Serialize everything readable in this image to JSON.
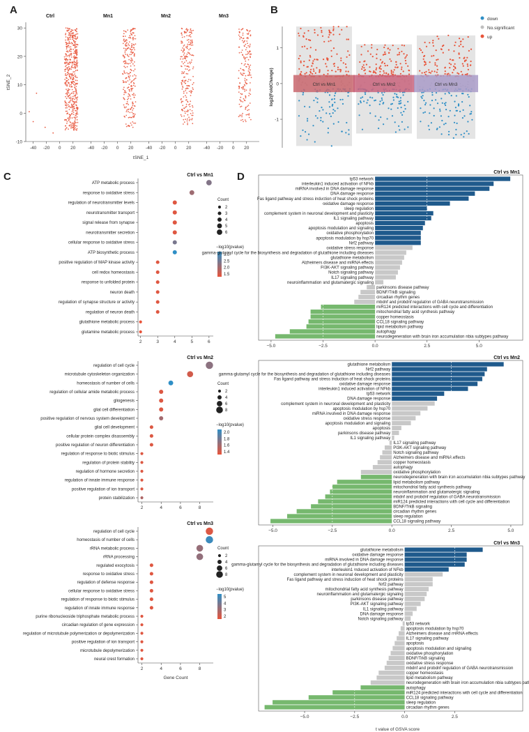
{
  "panel_labels": {
    "A": "A",
    "B": "B",
    "C": "C",
    "D": "D"
  },
  "colors": {
    "up": "#e8543a",
    "down": "#2f8fc6",
    "ns": "#bfbfbf",
    "navy": "#1f5a8c",
    "green": "#76b86e",
    "grey": "#c8c8c8",
    "ctrlmn1": "#c9666d",
    "ctrlmn2": "#c9647c",
    "ctrlmn3": "#a99bc8"
  },
  "chart_data": [
    {
      "id": "A",
      "type": "scatter",
      "title": "",
      "facets": [
        "Ctrl",
        "Mn1",
        "Mn2",
        "Mn3"
      ],
      "xlabel": "tSNE_1",
      "ylabel": "tSNE_2",
      "xticks": [
        -40,
        -20,
        0,
        20
      ],
      "yticks": [
        -10,
        0,
        10,
        20,
        30
      ],
      "xlim": [
        -48,
        36
      ],
      "ylim": [
        -10,
        32
      ]
    },
    {
      "id": "B",
      "type": "scatter",
      "ylabel": "log2(FoldChange)",
      "yticks": [
        -1,
        0,
        1
      ],
      "ylim": [
        -1.8,
        1.6
      ],
      "legend": [
        "down",
        "No.significant",
        "up"
      ],
      "groups": [
        "Ctrl vs Mn1",
        "Ctrl vs Mn2",
        "Ctrl vs Mn3"
      ],
      "ranges": [
        [
          -1.75,
          1.6
        ],
        [
          -1.4,
          1.1
        ],
        [
          -1.55,
          1.35
        ]
      ]
    },
    {
      "id": "C1",
      "type": "scatter",
      "title": "Ctrl  vs  Mn1",
      "xlabel": "",
      "xticks": [
        2,
        3,
        4,
        5,
        6
      ],
      "xlim": [
        1.85,
        6.25
      ],
      "size_legend_title": "Count",
      "size_legend": [
        "2",
        "3",
        "4",
        "5",
        "6"
      ],
      "color_legend_title": "−log10(pvalue)",
      "color_ticks": [
        "3.0",
        "2.5",
        "2.0",
        "1.5"
      ],
      "color_range": [
        1.2,
        3.2
      ],
      "terms": [
        "ATP metabolic process",
        "response to oxidative stress",
        "regulation of neurotransmitter levels",
        "neurotransmitter transport",
        "signal release from synapse",
        "neurotransmitter secretion",
        "cellular response to oxidative stress",
        "ATP biosynthetic process",
        "positive regulation of MAP kinase activity",
        "cell redox homeostasis",
        "response to unfolded protein",
        "neuron death",
        "regulation of synapse structure or activity",
        "regulation of neuron death",
        "glutathione metabolic process",
        "glutamine metabolic process"
      ],
      "counts": [
        6,
        5,
        4,
        4,
        4,
        4,
        4,
        4,
        3,
        3,
        3,
        3,
        3,
        3,
        2,
        2
      ],
      "pvals": [
        2.3,
        2.0,
        1.3,
        1.3,
        1.3,
        1.3,
        2.4,
        3.3,
        1.3,
        1.3,
        1.3,
        1.3,
        1.3,
        1.3,
        1.2,
        1.2
      ]
    },
    {
      "id": "C2",
      "type": "scatter",
      "title": "Ctrl  vs  Mn2",
      "xlabel": "",
      "xticks": [
        2,
        4,
        6,
        8
      ],
      "xlim": [
        1.6,
        9.4
      ],
      "size_legend_title": "Count",
      "size_legend": [
        "2",
        "4",
        "6",
        "8"
      ],
      "color_legend_title": "−log10(pvalue)",
      "color_ticks": [
        "2.0",
        "1.8",
        "1.6",
        "1.4"
      ],
      "color_range": [
        1.3,
        2.1
      ],
      "terms": [
        "regulation of cell cycle",
        "microtubule cytoskeleton organization",
        "homeostasis of number of cells",
        "regulation of cellular amide metabolic process",
        "gliogenesis",
        "glial cell differentiation",
        "positive regulation of nervous system development",
        "glial cell development",
        "cellular protein complex disassembly",
        "positive regulation of neuron differentiation",
        "regulation of response to biotic stimulus",
        "regulation of protein stability",
        "regulation of hormone secretion",
        "regulation of innate immune response",
        "positive regulation of ion transport",
        "protein stabilization"
      ],
      "counts": [
        9,
        7,
        5,
        4,
        4,
        4,
        4,
        3,
        3,
        3,
        2,
        2,
        2,
        2,
        2,
        2
      ],
      "pvals": [
        1.7,
        1.4,
        2.1,
        1.35,
        1.35,
        1.35,
        1.6,
        1.35,
        1.35,
        1.35,
        1.35,
        1.35,
        1.35,
        1.35,
        1.35,
        1.55
      ]
    },
    {
      "id": "C3",
      "type": "scatter",
      "title": "Ctrl  vs  Mn3",
      "xlabel": "Gene Count",
      "xticks": [
        2,
        4,
        6,
        8
      ],
      "xlim": [
        1.6,
        9.4
      ],
      "size_legend_title": "Count",
      "size_legend": [
        "2",
        "4",
        "6",
        "8"
      ],
      "color_legend_title": "−log10(pvalue)",
      "color_ticks": [
        "5",
        "4",
        "3",
        "2"
      ],
      "color_range": [
        1.5,
        5.8
      ],
      "terms": [
        "regulation of cell cycle",
        "homeostasis of number of cells",
        "rRNA metabolic process",
        "rRNA processing",
        "regulated exocytosis",
        "response to oxidative stress",
        "regulation of defense response",
        "cellular response to oxidative stress",
        "regulation of response to biotic stimulus",
        "regulation of innate immune response",
        "purine ribonucleoside triphosphate metabolic process",
        "circadian regulation of gene expression",
        "regulation of microtubule polymerization or depolymerization",
        "positive regulation of ion transport",
        "microtubule depolymerization",
        "neural crest formation"
      ],
      "counts": [
        9,
        9,
        8,
        8,
        3,
        3,
        3,
        3,
        3,
        3,
        2,
        2,
        2,
        2,
        2,
        2
      ],
      "pvals": [
        1.8,
        5.5,
        3.4,
        3.5,
        1.7,
        1.7,
        1.7,
        1.7,
        1.7,
        1.7,
        1.7,
        1.7,
        1.7,
        1.7,
        1.7,
        1.7
      ]
    },
    {
      "id": "D1",
      "type": "bar",
      "title": "Ctrl  vs  Mn1",
      "xlabel": "",
      "xticks": [
        -5,
        -2.5,
        0,
        2.5,
        5
      ],
      "xticklabels": [
        "−5.0",
        "−2.5",
        "0.0",
        "2.5",
        "5.0"
      ],
      "xlim": [
        -5.6,
        7.1
      ],
      "terms": [
        "tp53 network",
        "interleukin1 induced activation of NFkb",
        "miRNA involved in DNA damage response",
        "DNA damage response",
        "Fas ligand pathway and stress induction of heat shock proteins",
        "oxidative damage response",
        "sleep regulation",
        "complement system in neuronal development and plasticity",
        "IL1 signaling pathway",
        "apoptosis",
        "apoptosis modulation and signaling",
        "oxidative phosphorylation",
        "apoptosis modulation by hsp70",
        "Nrf2 pathway",
        "oxidative stress response",
        "gamma-glutamyl cycle for the biosynthesis and degradation of glutathione including diseases",
        "glutathione metabolism",
        "Alzheimers disease and miRNA effects",
        "PI3K-AKT signaling pathway",
        "Notch signaling pathway",
        "IL17 signaling pathway",
        "neuroinflammation and glutamatergic signaling",
        "parkinsons disease pathway",
        "BDNF/TrkB signaling",
        "circadian rhythm genes",
        "mbdnf and probdnf regulation of GABA neurotransmission",
        "miR124 predicted interactions with cell cycle and differentiation",
        "mitochondrial fatty acid synthesis pathway",
        "copper homeostasis",
        "CCL18 signaling pathway",
        "lipid metabolism pathway",
        "autophagy",
        "neurodegeneration with brain iron accumulation nbia subtypes pathway"
      ],
      "values": [
        6.5,
        5.7,
        5.5,
        4.8,
        4.5,
        3.6,
        2.5,
        2.8,
        2.7,
        2.4,
        2.3,
        2.2,
        2.2,
        2.2,
        1.8,
        1.5,
        1.4,
        1.3,
        1.2,
        1.1,
        1.0,
        0.4,
        -0.4,
        -0.7,
        -0.8,
        -1.0,
        -2.6,
        -3.1,
        -3.1,
        -3.2,
        -3.3,
        -4.1,
        -4.8
      ],
      "categories": [
        "up",
        "up",
        "up",
        "up",
        "up",
        "up",
        "up",
        "up",
        "up",
        "up",
        "up",
        "up",
        "up",
        "up",
        "ns",
        "ns",
        "ns",
        "ns",
        "ns",
        "ns",
        "ns",
        "ns",
        "ns",
        "ns",
        "ns",
        "ns",
        "down",
        "down",
        "down",
        "down",
        "down",
        "down",
        "down"
      ]
    },
    {
      "id": "D2",
      "type": "bar",
      "title": "Ctrl  vs  Mn2",
      "xlabel": "",
      "xticks": [
        -5,
        -2.5,
        0,
        2.5,
        5
      ],
      "xticklabels": [
        "−5.0",
        "−2.5",
        "0.0",
        "2.5",
        "5.0"
      ],
      "xlim": [
        -5.6,
        5.5
      ],
      "terms": [
        "glutathione metabolism",
        "Nrf2 pathway",
        "gamma-glutamyl cycle for the biosynthesis and degradation of glutathione including diseases",
        "Fas ligand pathway and stress induction of heat shock proteins",
        "oxidative damage response",
        "interleukin1 induced activation of NFkb",
        "tp53 network",
        "DNA damage response",
        "complement system in neuronal development and plasticity",
        "apoptosis modulation by hsp70",
        "miRNA involved in DNA damage response",
        "oxidative stress response",
        "apoptosis modulation and signaling",
        "apoptosis",
        "parkinsons disease pathway",
        "IL1 signaling pathway",
        "IL17 signaling pathway",
        "PI3K-AKT signaling pathway",
        "Notch signaling pathway",
        "Alzheimers disease and miRNA effects",
        "copper homeostasis",
        "autophagy",
        "oxidative phosphorylation",
        "neurodegeneration with brain iron accumulation nbia subtypes pathway",
        "lipid metabolism pathway",
        "mitochondrial fatty acid synthesis pathway",
        "neuroinflammation and glutamatergic signaling",
        "mbdnf and probdnf regulation of GABA neurotransmission",
        "miR124 predicted interactions with cell cycle and differentiation",
        "BDNF/TrkB signaling",
        "circadian rhythm genes",
        "sleep regulation",
        "CCL18 signaling pathway"
      ],
      "values": [
        4.7,
        4.0,
        3.9,
        3.8,
        3.6,
        3.2,
        2.2,
        1.9,
        1.8,
        1.5,
        1.2,
        1.0,
        0.8,
        0.4,
        0.3,
        0.1,
        -0.1,
        -0.3,
        -0.4,
        -0.5,
        -0.6,
        -0.8,
        -1.3,
        -1.3,
        -2.3,
        -2.5,
        -2.6,
        -2.8,
        -3.1,
        -3.4,
        -4.0,
        -4.4,
        -5.1
      ],
      "categories": [
        "up",
        "up",
        "up",
        "up",
        "up",
        "up",
        "up",
        "up",
        "ns",
        "ns",
        "ns",
        "ns",
        "ns",
        "ns",
        "ns",
        "ns",
        "ns",
        "ns",
        "ns",
        "ns",
        "ns",
        "ns",
        "ns",
        "down",
        "down",
        "down",
        "down",
        "down",
        "down",
        "down",
        "down",
        "down",
        "down"
      ]
    },
    {
      "id": "D3",
      "type": "bar",
      "title": "Ctrl  vs  Mn3",
      "xlabel": "t value of GSVA score",
      "xticks": [
        -5,
        -2.5,
        0,
        2.5
      ],
      "xticklabels": [
        "−5.0",
        "−2.5",
        "0.0",
        "2.5"
      ],
      "xlim": [
        -7.3,
        5.9
      ],
      "terms": [
        "glutathione metabolism",
        "oxidative damage response",
        "miRNA involved in DNA damage response",
        "gamma-glutamyl cycle for the biosynthesis and degradation of glutathione including diseases",
        "interleukin1 induced activation of NFkb",
        "complement system in neuronal development and plasticity",
        "Fas ligand pathway and stress induction of heat shock proteins",
        "Nrf2 pathway",
        "mitochondrial fatty acid synthesis pathway",
        "neuroinflammation and glutamatergic signaling",
        "parkinsons disease pathway",
        "PI3K-AKT signaling pathway",
        "IL1 signaling pathway",
        "DNA damage response",
        "Notch signaling pathway",
        "tp53 network",
        "apoptosis modulation by hsp70",
        "Alzheimers disease and miRNA effects",
        "IL17 signaling pathway",
        "apoptosis",
        "apoptosis modulation and signaling",
        "oxidative phosphorylation",
        "BDNF/TrkB signaling",
        "oxidative stress response",
        "mbdnf and probdnf regulation of GABA neurotransmission",
        "copper homeostasis",
        "lipid metabolism pathway",
        "neurodegeneration with brain iron accumulation nbia subtypes pathway",
        "autophagy",
        "miR124 predicted interactions with cell cycle and differentiation",
        "CCL18 signaling pathway",
        "sleep regulation",
        "circadian rhythm genes"
      ],
      "values": [
        3.9,
        3.1,
        3.1,
        3.0,
        2.2,
        1.9,
        1.4,
        1.4,
        1.2,
        1.1,
        1.0,
        0.8,
        0.6,
        0.4,
        0.3,
        -0.1,
        -0.2,
        -0.3,
        -0.4,
        -0.5,
        -0.6,
        -0.7,
        -0.8,
        -0.9,
        -1.0,
        -1.3,
        -1.4,
        -1.7,
        -2.2,
        -3.6,
        -4.8,
        -6.6,
        -7.0
      ],
      "categories": [
        "up",
        "up",
        "up",
        "up",
        "up",
        "ns",
        "ns",
        "ns",
        "ns",
        "ns",
        "ns",
        "ns",
        "ns",
        "ns",
        "ns",
        "ns",
        "ns",
        "ns",
        "ns",
        "ns",
        "ns",
        "ns",
        "ns",
        "ns",
        "ns",
        "ns",
        "ns",
        "ns",
        "down",
        "down",
        "down",
        "down",
        "down"
      ]
    }
  ]
}
